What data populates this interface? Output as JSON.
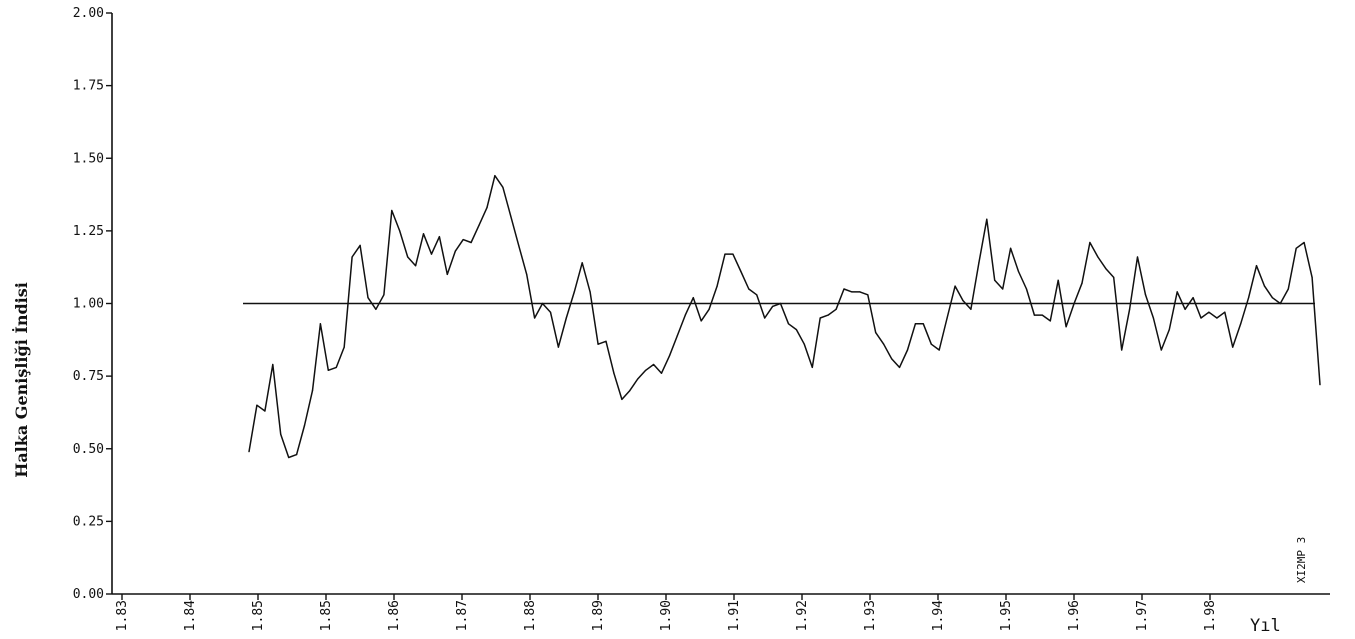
{
  "chart_data": {
    "type": "line",
    "ylabel": "Halka Genişliği İndisi",
    "xlabel": "Yıl",
    "corner_code": "XI2MP 3",
    "ylim": [
      0,
      2
    ],
    "y_ticks": [
      "0.00",
      "0.25",
      "0.50",
      "0.75",
      "1.00",
      "1.25",
      "1.50",
      "1.75",
      "2.00"
    ],
    "x_ticks": [
      "1.83",
      "1.84",
      "1.85",
      "1.85",
      "1.86",
      "1.87",
      "1.88",
      "1.89",
      "1.90",
      "1.91",
      "1.92",
      "1.93",
      "1.94",
      "1.95",
      "1.96",
      "1.97",
      "1.98"
    ],
    "reference_line": 1.0,
    "series": [
      {
        "values": [
          0.49,
          0.65,
          0.63,
          0.79,
          0.55,
          0.47,
          0.48,
          0.58,
          0.7,
          0.93,
          0.77,
          0.78,
          0.85,
          1.16,
          1.2,
          1.02,
          0.98,
          1.03,
          1.32,
          1.25,
          1.16,
          1.13,
          1.24,
          1.17,
          1.23,
          1.1,
          1.18,
          1.22,
          1.21,
          1.27,
          1.33,
          1.44,
          1.4,
          1.3,
          1.2,
          1.1,
          0.95,
          1.0,
          0.97,
          0.85,
          0.95,
          1.04,
          1.14,
          1.04,
          0.86,
          0.87,
          0.76,
          0.67,
          0.7,
          0.74,
          0.77,
          0.79,
          0.76,
          0.82,
          0.89,
          0.96,
          1.02,
          0.94,
          0.98,
          1.06,
          1.17,
          1.17,
          1.11,
          1.05,
          1.03,
          0.95,
          0.99,
          1.0,
          0.93,
          0.91,
          0.86,
          0.78,
          0.95,
          0.96,
          0.98,
          1.05,
          1.04,
          1.04,
          1.03,
          0.9,
          0.86,
          0.81,
          0.78,
          0.84,
          0.93,
          0.93,
          0.86,
          0.84,
          0.95,
          1.06,
          1.01,
          0.98,
          1.14,
          1.29,
          1.08,
          1.05,
          1.19,
          1.11,
          1.05,
          0.96,
          0.96,
          0.94,
          1.08,
          0.92,
          1.0,
          1.07,
          1.21,
          1.16,
          1.12,
          1.09,
          0.84,
          0.98,
          1.16,
          1.03,
          0.95,
          0.84,
          0.91,
          1.04,
          0.98,
          1.02,
          0.95,
          0.97,
          0.95,
          0.97,
          0.85,
          0.93,
          1.02,
          1.13,
          1.06,
          1.02,
          1.0,
          1.05,
          1.19,
          1.21,
          1.09,
          0.72
        ]
      }
    ],
    "colors": {
      "line": "#111111",
      "reference": "#111111",
      "axis": "#111111"
    }
  }
}
